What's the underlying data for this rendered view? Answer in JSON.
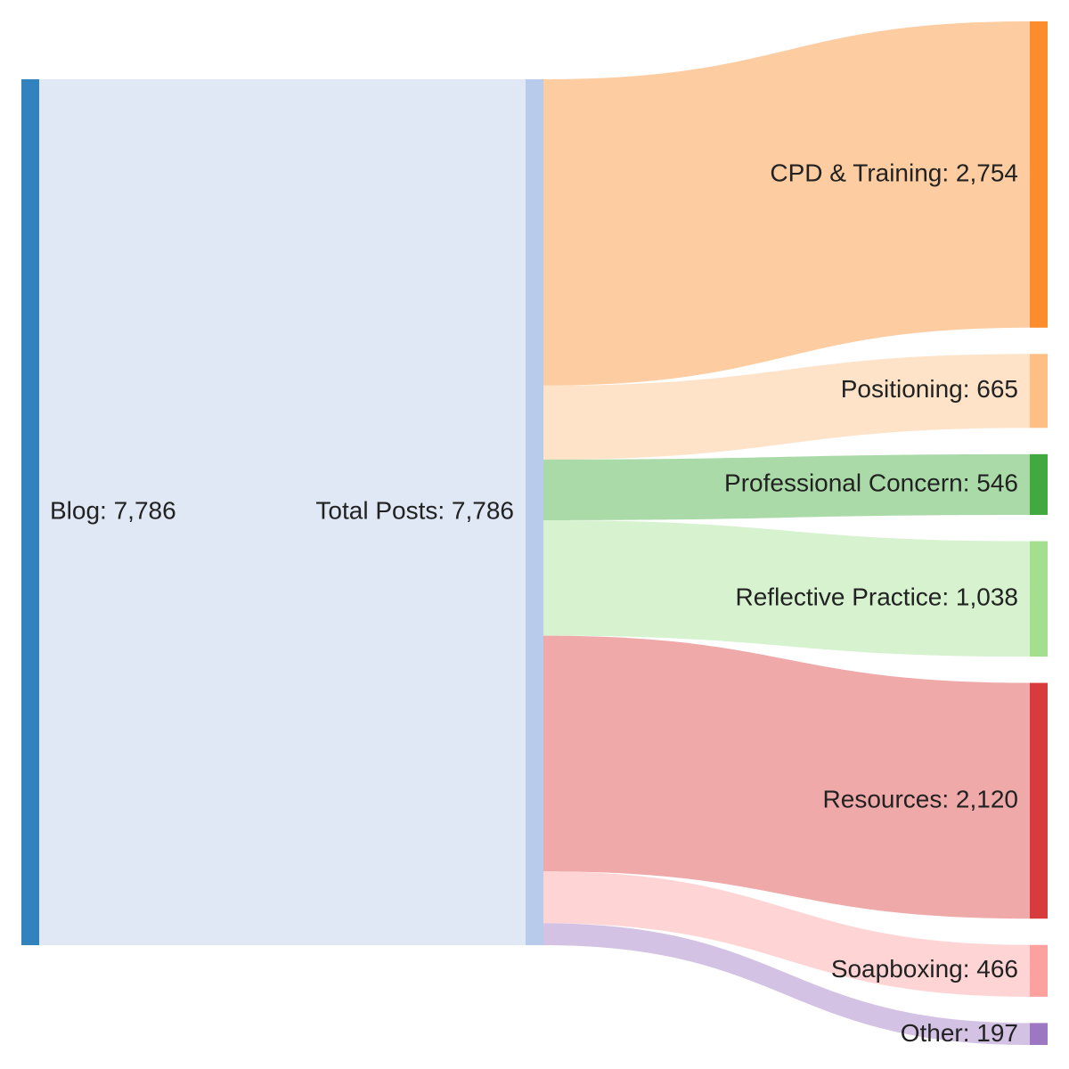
{
  "chart_data": {
    "type": "sankey",
    "title": "",
    "nodes": [
      {
        "id": "blog",
        "label": "Blog: 7,786",
        "name": "Blog",
        "value": 7786,
        "color": "#3182bd",
        "column": 0
      },
      {
        "id": "total",
        "label": "Total Posts: 7,786",
        "name": "Total Posts",
        "value": 7786,
        "color": "#b8cbea",
        "column": 1
      },
      {
        "id": "cpd",
        "label": "CPD & Training: 2,754",
        "name": "CPD & Training",
        "value": 2754,
        "color": "#fd8d2c",
        "column": 2
      },
      {
        "id": "positioning",
        "label": "Positioning: 665",
        "name": "Positioning",
        "value": 665,
        "color": "#fdbf84",
        "column": 2
      },
      {
        "id": "concern",
        "label": "Professional Concern: 546",
        "name": "Professional Concern",
        "value": 546,
        "color": "#41a940",
        "column": 2
      },
      {
        "id": "reflective",
        "label": "Reflective Practice: 1,038",
        "name": "Reflective Practice",
        "value": 1038,
        "color": "#a3df8f",
        "column": 2
      },
      {
        "id": "resources",
        "label": "Resources: 2,120",
        "name": "Resources",
        "value": 2120,
        "color": "#d83b3d",
        "column": 2
      },
      {
        "id": "soapboxing",
        "label": "Soapboxing: 466",
        "name": "Soapboxing",
        "value": 466,
        "color": "#fda19e",
        "column": 2
      },
      {
        "id": "other",
        "label": "Other: 197",
        "name": "Other",
        "value": 197,
        "color": "#9d77c2",
        "column": 2
      }
    ],
    "links": [
      {
        "source": "blog",
        "target": "total",
        "value": 7786,
        "color": "#dfe8f4"
      },
      {
        "source": "total",
        "target": "cpd",
        "value": 2754,
        "color": "#fecca1"
      },
      {
        "source": "total",
        "target": "positioning",
        "value": 665,
        "color": "#fee3c8"
      },
      {
        "source": "total",
        "target": "concern",
        "value": 546,
        "color": "#abdaa9"
      },
      {
        "source": "total",
        "target": "reflective",
        "value": 1038,
        "color": "#d6f2cf"
      },
      {
        "source": "total",
        "target": "resources",
        "value": 2120,
        "color": "#efa9a9"
      },
      {
        "source": "total",
        "target": "soapboxing",
        "value": 466,
        "color": "#fed4d4"
      },
      {
        "source": "total",
        "target": "other",
        "value": 197,
        "color": "#d3c2e4"
      }
    ]
  }
}
